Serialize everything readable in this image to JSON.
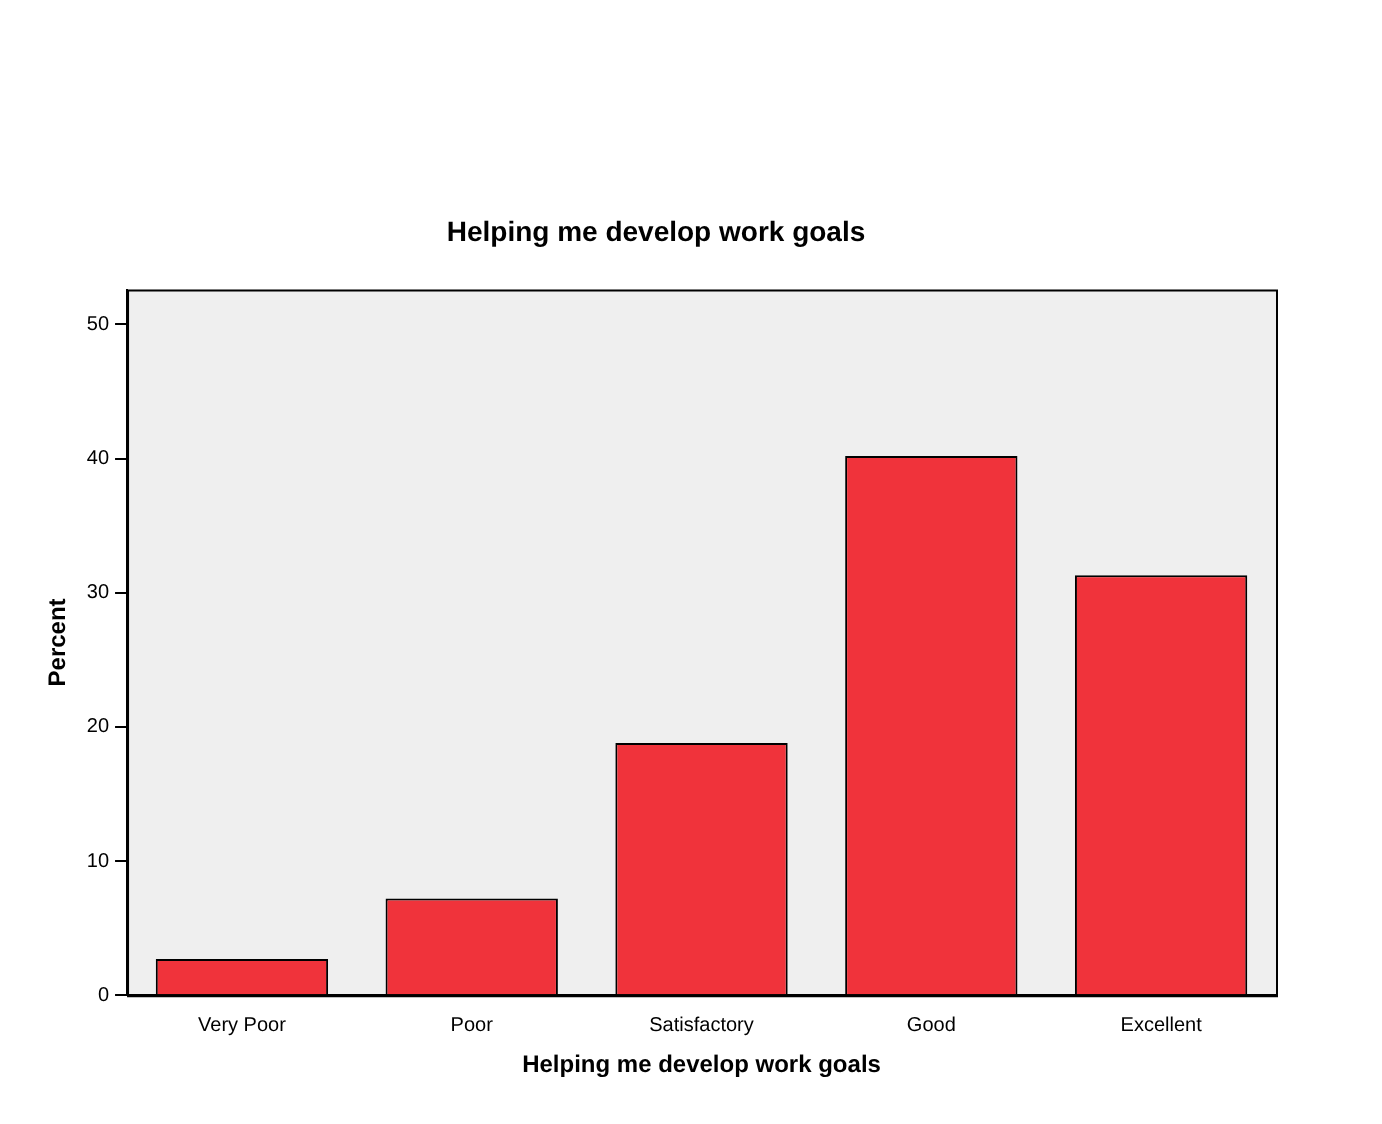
{
  "chart_data": {
    "type": "bar",
    "title": "Helping me develop work goals",
    "xlabel": "Helping me develop work goals",
    "ylabel": "Percent",
    "categories": [
      "Very Poor",
      "Poor",
      "Satisfactory",
      "Good",
      "Excellent"
    ],
    "values": [
      2.7,
      7.2,
      18.8,
      40.2,
      31.3
    ],
    "color": "#f0333b",
    "ylim": [
      0,
      52.6
    ],
    "yticks": [
      0,
      10,
      20,
      30,
      40,
      50
    ],
    "grid": false,
    "legend": false
  }
}
